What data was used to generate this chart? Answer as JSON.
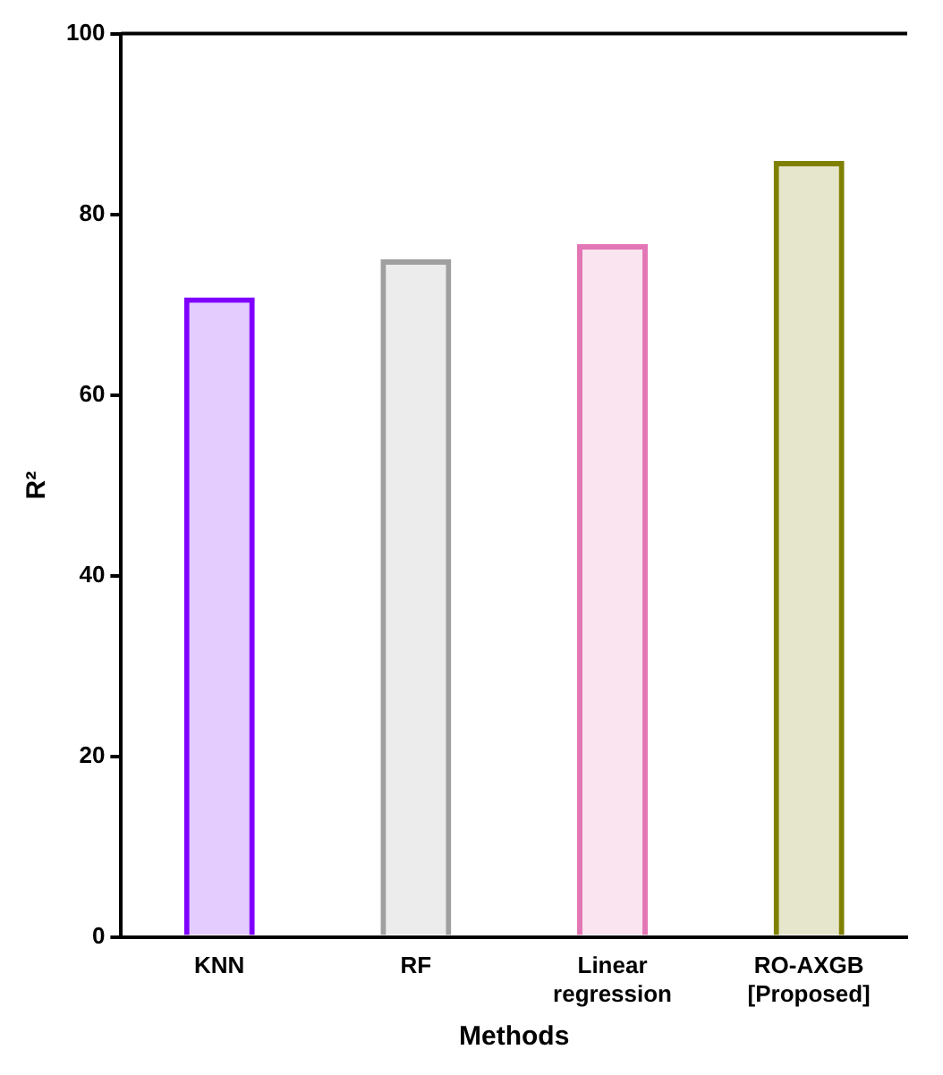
{
  "chart_data": {
    "type": "bar",
    "xlabel": "Methods",
    "ylabel": "R²",
    "categories": [
      "KNN",
      "RF",
      "Linear regression",
      "RO-AXGB [Proposed]"
    ],
    "values": [
      70.8,
      75,
      76.7,
      85.9
    ],
    "colors": [
      "#7f00ff",
      "#a0a0a0",
      "#e377b5",
      "#808000"
    ],
    "ylim": [
      0,
      100
    ],
    "yticks": [
      0,
      20,
      40,
      60,
      80,
      100
    ],
    "grid": false,
    "legend": false
  }
}
